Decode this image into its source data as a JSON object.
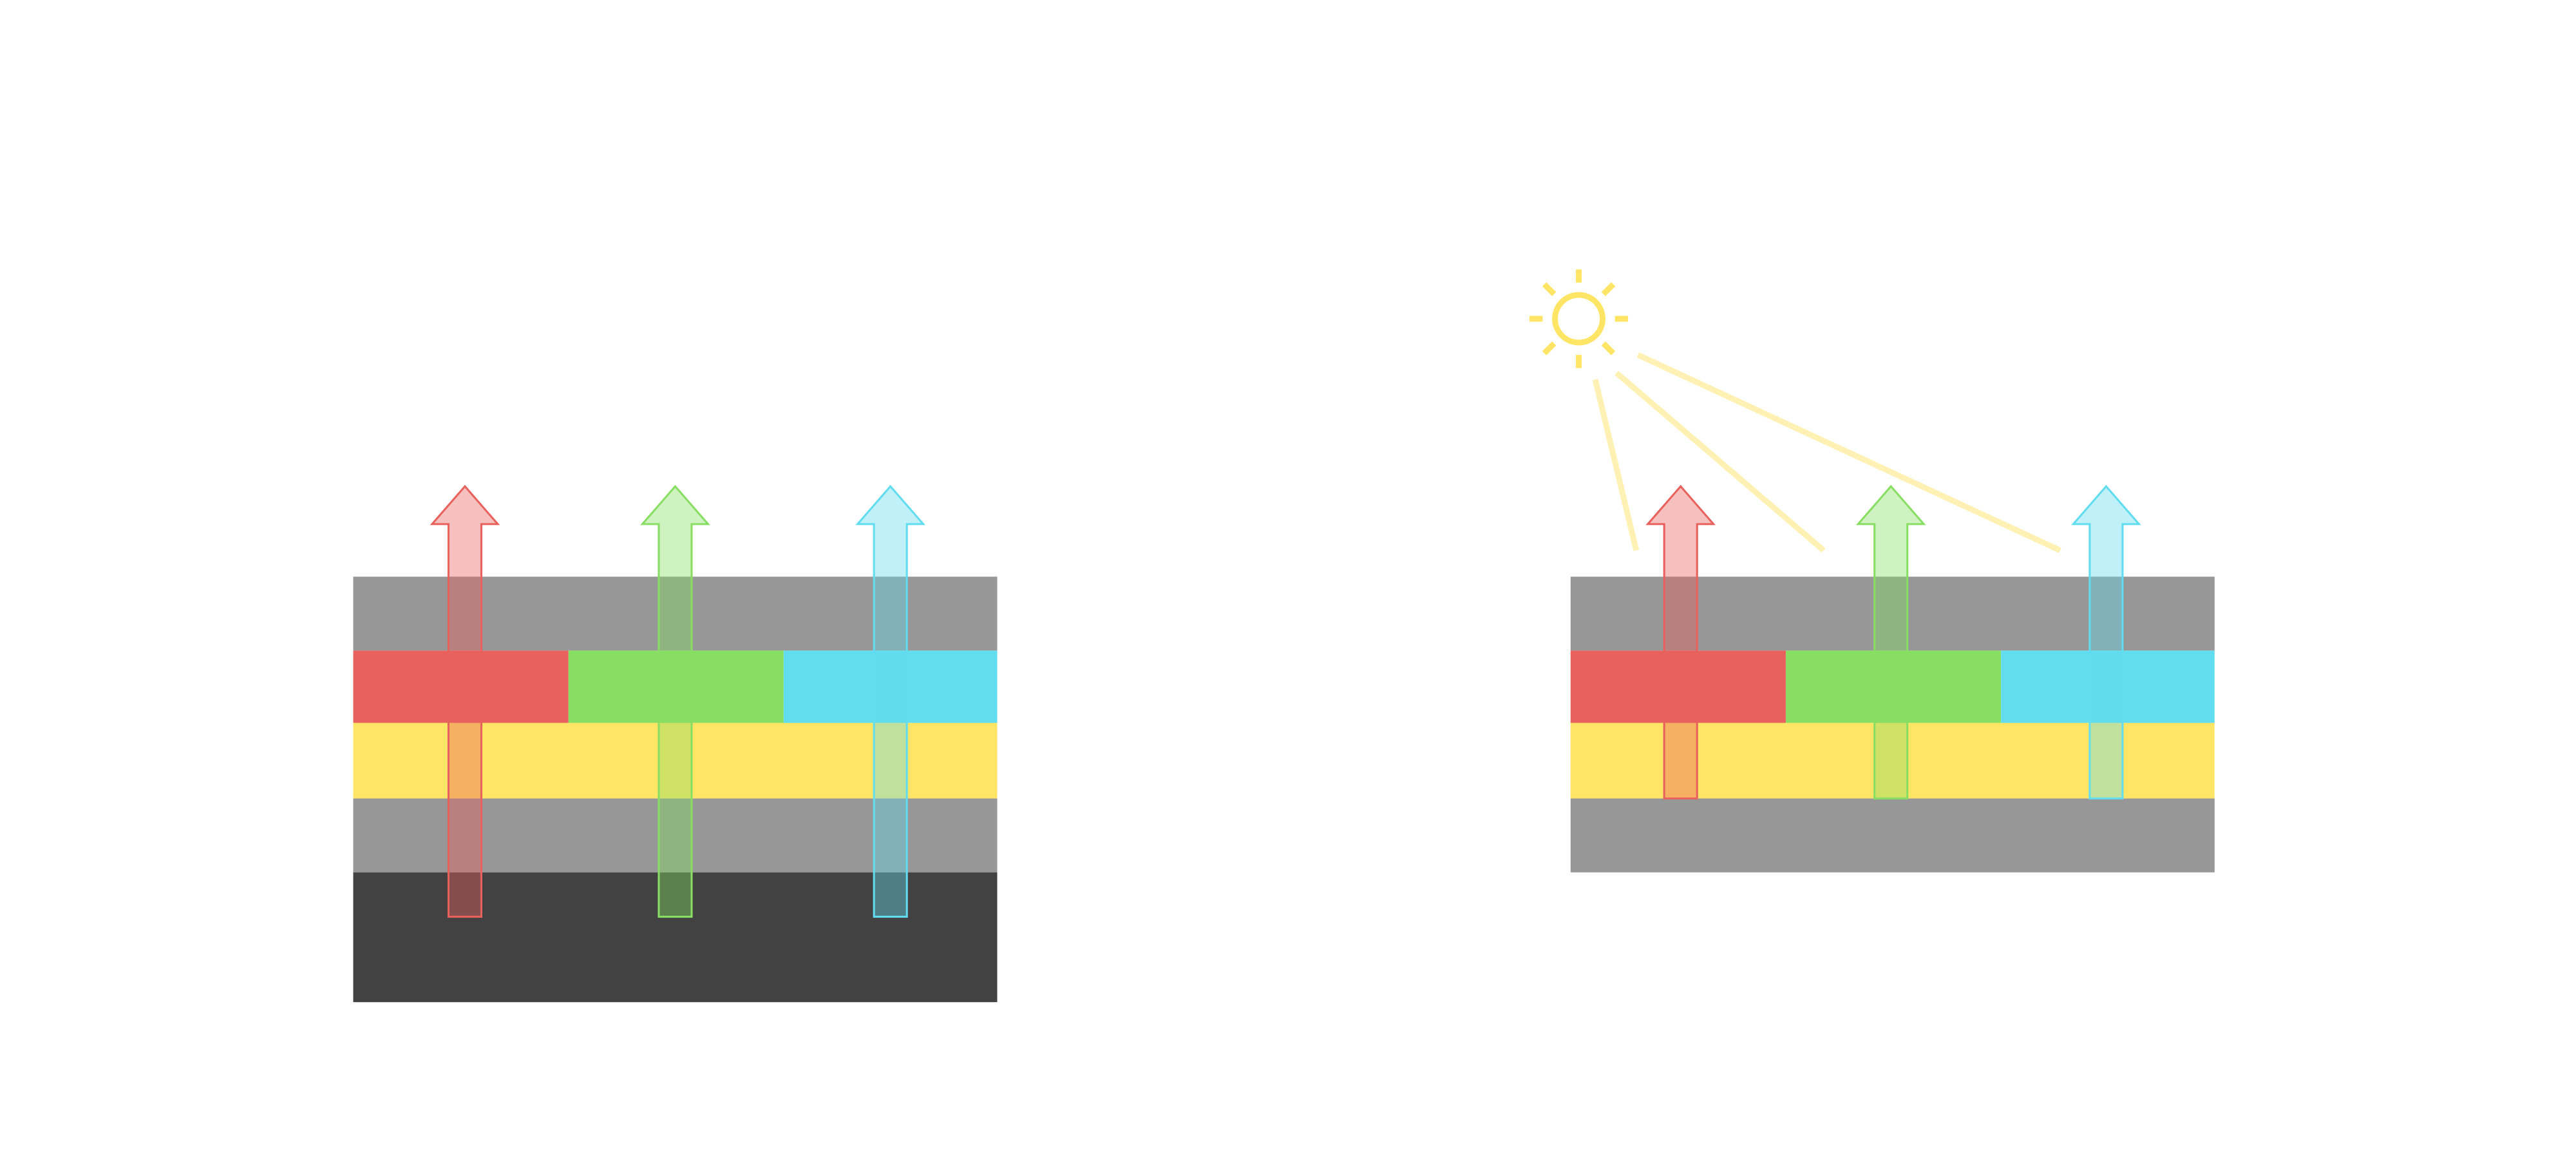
{
  "colors": {
    "gray_layer": "#979797",
    "dark_layer": "#424242",
    "red": "#E8615C",
    "green": "#88DE63",
    "cyan": "#62DCEF",
    "yellow": "#FFE566",
    "light_ray": "#FFF1B3",
    "red_arrow_fill": "#F19A98",
    "green_arrow_fill": "#B3E99C",
    "cyan_arrow_fill": "#9FE8F4"
  },
  "panels": [
    {
      "name": "left-stack",
      "layers": [
        "gray",
        "color-filter",
        "yellow",
        "gray",
        "dark"
      ],
      "arrows": [
        "red",
        "green",
        "cyan"
      ]
    },
    {
      "name": "right-stack",
      "layers": [
        "gray",
        "color-filter",
        "yellow",
        "gray"
      ],
      "arrows": [
        "red",
        "green",
        "cyan"
      ],
      "icon": "sun-icon"
    }
  ]
}
